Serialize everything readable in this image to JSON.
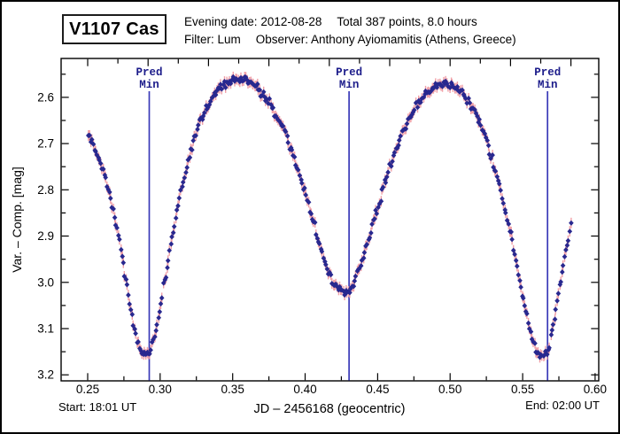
{
  "header": {
    "star_name": "V1107 Cas",
    "evening_date": "Evening date: 2012-08-28",
    "total_points": "Total 387 points, 8.0 hours",
    "filter": "Filter: Lum",
    "observer": "Observer: Anthony Ayiomamitis (Athens, Greece)"
  },
  "footer": {
    "start": "Start: 18:01 UT",
    "end": "End: 02:00 UT"
  },
  "chart_data": {
    "type": "scatter",
    "title": "V1107 Cas",
    "xlabel": "JD – 2456168  (geocentric)",
    "ylabel": "Var. – Comp. [mag]",
    "legend": null,
    "grid": false,
    "x_axis": {
      "min": 0.2317,
      "max": 0.6025,
      "major_ticks": [
        0.25,
        0.3,
        0.35,
        0.4,
        0.45,
        0.5,
        0.55,
        0.6
      ],
      "tick_labels": [
        "0.25",
        "0.30",
        "0.35",
        "0.40",
        "0.45",
        "0.50",
        "0.55",
        "0.60"
      ],
      "minor_step": 0.025,
      "top_tick_step": 0.0208333
    },
    "y_axis": {
      "min": 2.516,
      "max": 3.213,
      "inverted_magnitude_scale": true,
      "major_ticks": [
        2.6,
        2.7,
        2.8,
        2.9,
        3.0,
        3.1,
        3.2
      ],
      "tick_labels": [
        "2.6",
        "2.7",
        "2.8",
        "2.9",
        "3.0",
        "3.1",
        "3.2"
      ],
      "minor_step": 0.05
    },
    "pred_minima": {
      "label_lines": [
        "Pred",
        "Min"
      ],
      "x_values": [
        0.2925,
        0.4303,
        0.5672
      ]
    },
    "series": {
      "name": "Var - Comp [mag]",
      "n_points": 387,
      "x_start": 0.2505,
      "x_end": 0.5833,
      "noise_sigma_mag": 0.0045,
      "x_jitter": 0.0003,
      "error_bar_mag": 0.0115,
      "seed": 11,
      "curve_anchors": [
        [
          0.2505,
          2.678
        ],
        [
          0.252,
          2.69
        ],
        [
          0.2535,
          2.7
        ],
        [
          0.255,
          2.712
        ],
        [
          0.257,
          2.726
        ],
        [
          0.259,
          2.742
        ],
        [
          0.261,
          2.76
        ],
        [
          0.263,
          2.782
        ],
        [
          0.265,
          2.806
        ],
        [
          0.267,
          2.832
        ],
        [
          0.269,
          2.862
        ],
        [
          0.271,
          2.895
        ],
        [
          0.273,
          2.93
        ],
        [
          0.275,
          2.968
        ],
        [
          0.277,
          3.008
        ],
        [
          0.279,
          3.046
        ],
        [
          0.281,
          3.082
        ],
        [
          0.283,
          3.112
        ],
        [
          0.285,
          3.134
        ],
        [
          0.287,
          3.148
        ],
        [
          0.289,
          3.156
        ],
        [
          0.291,
          3.158
        ],
        [
          0.293,
          3.15
        ],
        [
          0.295,
          3.132
        ],
        [
          0.297,
          3.105
        ],
        [
          0.299,
          3.072
        ],
        [
          0.301,
          3.036
        ],
        [
          0.304,
          2.982
        ],
        [
          0.307,
          2.928
        ],
        [
          0.31,
          2.876
        ],
        [
          0.313,
          2.828
        ],
        [
          0.316,
          2.784
        ],
        [
          0.319,
          2.744
        ],
        [
          0.322,
          2.708
        ],
        [
          0.325,
          2.678
        ],
        [
          0.328,
          2.652
        ],
        [
          0.331,
          2.63
        ],
        [
          0.334,
          2.612
        ],
        [
          0.337,
          2.597
        ],
        [
          0.34,
          2.585
        ],
        [
          0.344,
          2.574
        ],
        [
          0.348,
          2.567
        ],
        [
          0.352,
          2.563
        ],
        [
          0.356,
          2.562
        ],
        [
          0.36,
          2.565
        ],
        [
          0.364,
          2.572
        ],
        [
          0.368,
          2.582
        ],
        [
          0.372,
          2.596
        ],
        [
          0.376,
          2.614
        ],
        [
          0.38,
          2.636
        ],
        [
          0.384,
          2.662
        ],
        [
          0.388,
          2.692
        ],
        [
          0.392,
          2.726
        ],
        [
          0.396,
          2.764
        ],
        [
          0.4,
          2.806
        ],
        [
          0.404,
          2.85
        ],
        [
          0.408,
          2.896
        ],
        [
          0.412,
          2.94
        ],
        [
          0.416,
          2.978
        ],
        [
          0.42,
          3.005
        ],
        [
          0.424,
          3.019
        ],
        [
          0.427,
          3.022
        ],
        [
          0.43,
          3.018
        ],
        [
          0.433,
          3.005
        ],
        [
          0.436,
          2.983
        ],
        [
          0.44,
          2.947
        ],
        [
          0.444,
          2.905
        ],
        [
          0.448,
          2.86
        ],
        [
          0.452,
          2.816
        ],
        [
          0.456,
          2.774
        ],
        [
          0.46,
          2.736
        ],
        [
          0.464,
          2.701
        ],
        [
          0.468,
          2.671
        ],
        [
          0.472,
          2.645
        ],
        [
          0.476,
          2.623
        ],
        [
          0.48,
          2.605
        ],
        [
          0.484,
          2.591
        ],
        [
          0.488,
          2.58
        ],
        [
          0.492,
          2.573
        ],
        [
          0.496,
          2.57
        ],
        [
          0.5,
          2.572
        ],
        [
          0.504,
          2.578
        ],
        [
          0.508,
          2.589
        ],
        [
          0.512,
          2.605
        ],
        [
          0.516,
          2.626
        ],
        [
          0.52,
          2.652
        ],
        [
          0.524,
          2.684
        ],
        [
          0.528,
          2.722
        ],
        [
          0.532,
          2.766
        ],
        [
          0.536,
          2.816
        ],
        [
          0.54,
          2.872
        ],
        [
          0.544,
          2.932
        ],
        [
          0.548,
          2.996
        ],
        [
          0.552,
          3.06
        ],
        [
          0.556,
          3.116
        ],
        [
          0.559,
          3.144
        ],
        [
          0.562,
          3.158
        ],
        [
          0.565,
          3.16
        ],
        [
          0.567,
          3.15
        ],
        [
          0.569,
          3.128
        ],
        [
          0.571,
          3.094
        ],
        [
          0.573,
          3.056
        ],
        [
          0.575,
          3.018
        ],
        [
          0.577,
          2.978
        ],
        [
          0.579,
          2.944
        ],
        [
          0.581,
          2.912
        ],
        [
          0.5833,
          2.88
        ]
      ]
    },
    "colors": {
      "point": "#28288f",
      "error_bar": "#f0a0a8",
      "pred_line": "#3a3ab8",
      "pred_text": "#1b1b8a",
      "axis": "#000000"
    }
  }
}
